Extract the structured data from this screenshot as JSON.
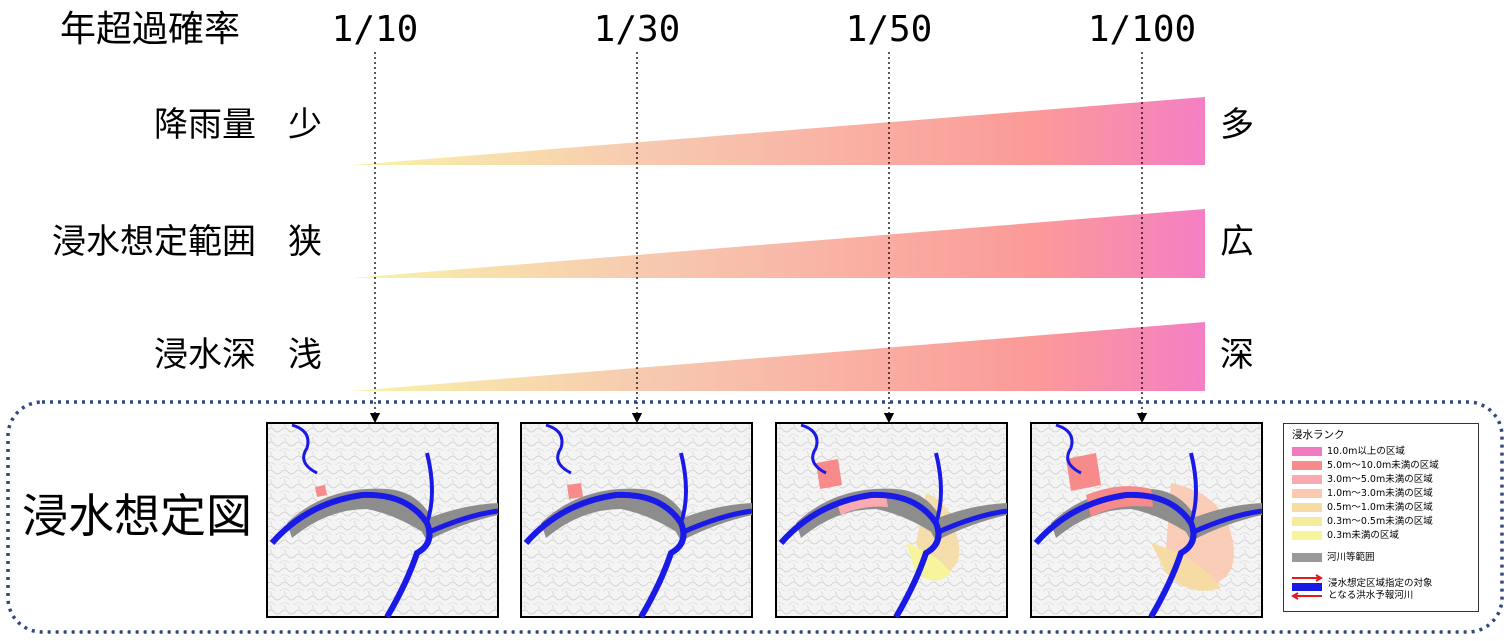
{
  "header": {
    "axis_label": "年超過確率",
    "probabilities": [
      "1/10",
      "1/30",
      "1/50",
      "1/100"
    ]
  },
  "rows": [
    {
      "label": "降雨量",
      "low": "少",
      "high": "多"
    },
    {
      "label": "浸水想定範囲",
      "low": "狭",
      "high": "広"
    },
    {
      "label": "浸水深",
      "low": "浅",
      "high": "深"
    }
  ],
  "gradient_colors": [
    "#f9f3a8",
    "#f7c9b0",
    "#fb9a98",
    "#f47fc4"
  ],
  "map_section": {
    "title": "浸水想定図",
    "border_color": "#2e4a7d"
  },
  "legend": {
    "title": "浸水ランク",
    "items": [
      {
        "label": "10.0m以上の区域",
        "color": "#f07bc0"
      },
      {
        "label": "5.0m～10.0m未満の区域",
        "color": "#f78a8a"
      },
      {
        "label": "3.0m～5.0m未満の区域",
        "color": "#f9aab0"
      },
      {
        "label": "1.0m～3.0m未満の区域",
        "color": "#f9c9b0"
      },
      {
        "label": "0.5m～1.0m未満の区域",
        "color": "#f6dca4"
      },
      {
        "label": "0.3m～0.5m未満の区域",
        "color": "#f4eaa0"
      },
      {
        "label": "0.3m未満の区域",
        "color": "#f6f49c"
      },
      {
        "label": "河川等範囲",
        "color": "#999999"
      }
    ],
    "river_label_1": "浸水想定区域指定の対象",
    "river_label_2": "となる洪水予報河川"
  }
}
